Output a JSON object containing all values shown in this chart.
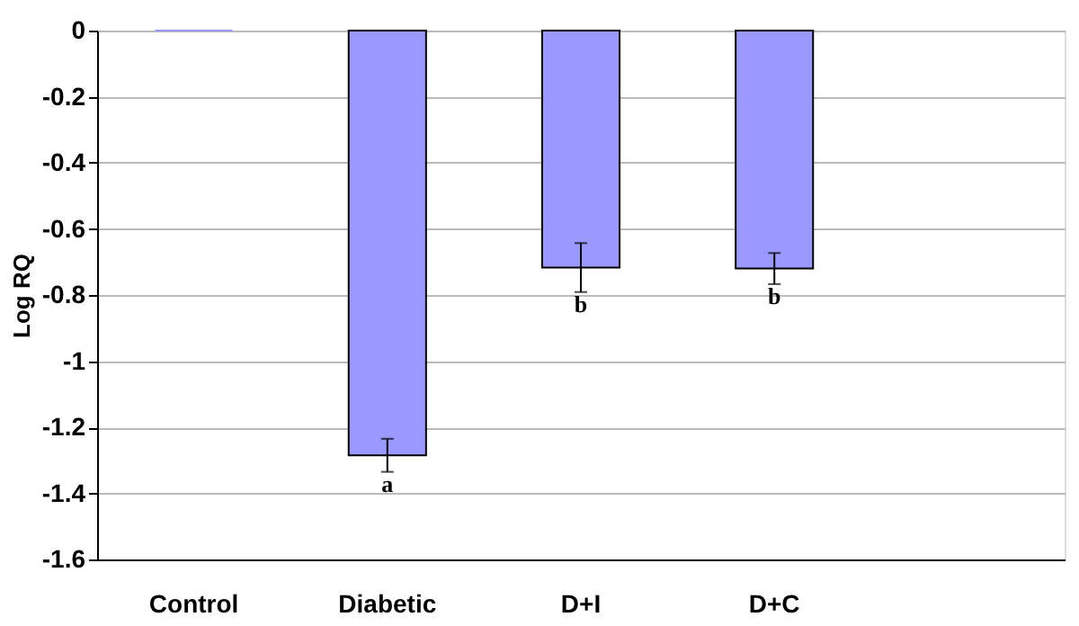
{
  "chart_data": {
    "type": "bar",
    "ylabel": "Log RQ",
    "categories": [
      "Control",
      "Diabetic",
      "D+I",
      "D+C",
      null
    ],
    "values": [
      0,
      -1.285,
      -0.717,
      -0.72,
      null
    ],
    "errors": [
      null,
      0.05,
      0.074,
      0.047,
      null
    ],
    "color": "#9999ff",
    "ylim": [
      -1.6,
      0
    ],
    "yticks": [
      -1.6,
      -1.4,
      -1.2,
      -1,
      -0.8,
      -0.6,
      -0.4,
      -0.2,
      0
    ],
    "grid": "y",
    "annotations": [
      {
        "text": "a",
        "x": "Diabetic",
        "y": -1.335
      },
      {
        "text": "b",
        "x": "D+I",
        "y": -0.791
      },
      {
        "text": "b",
        "x": "D+C",
        "y": -0.767
      }
    ]
  }
}
